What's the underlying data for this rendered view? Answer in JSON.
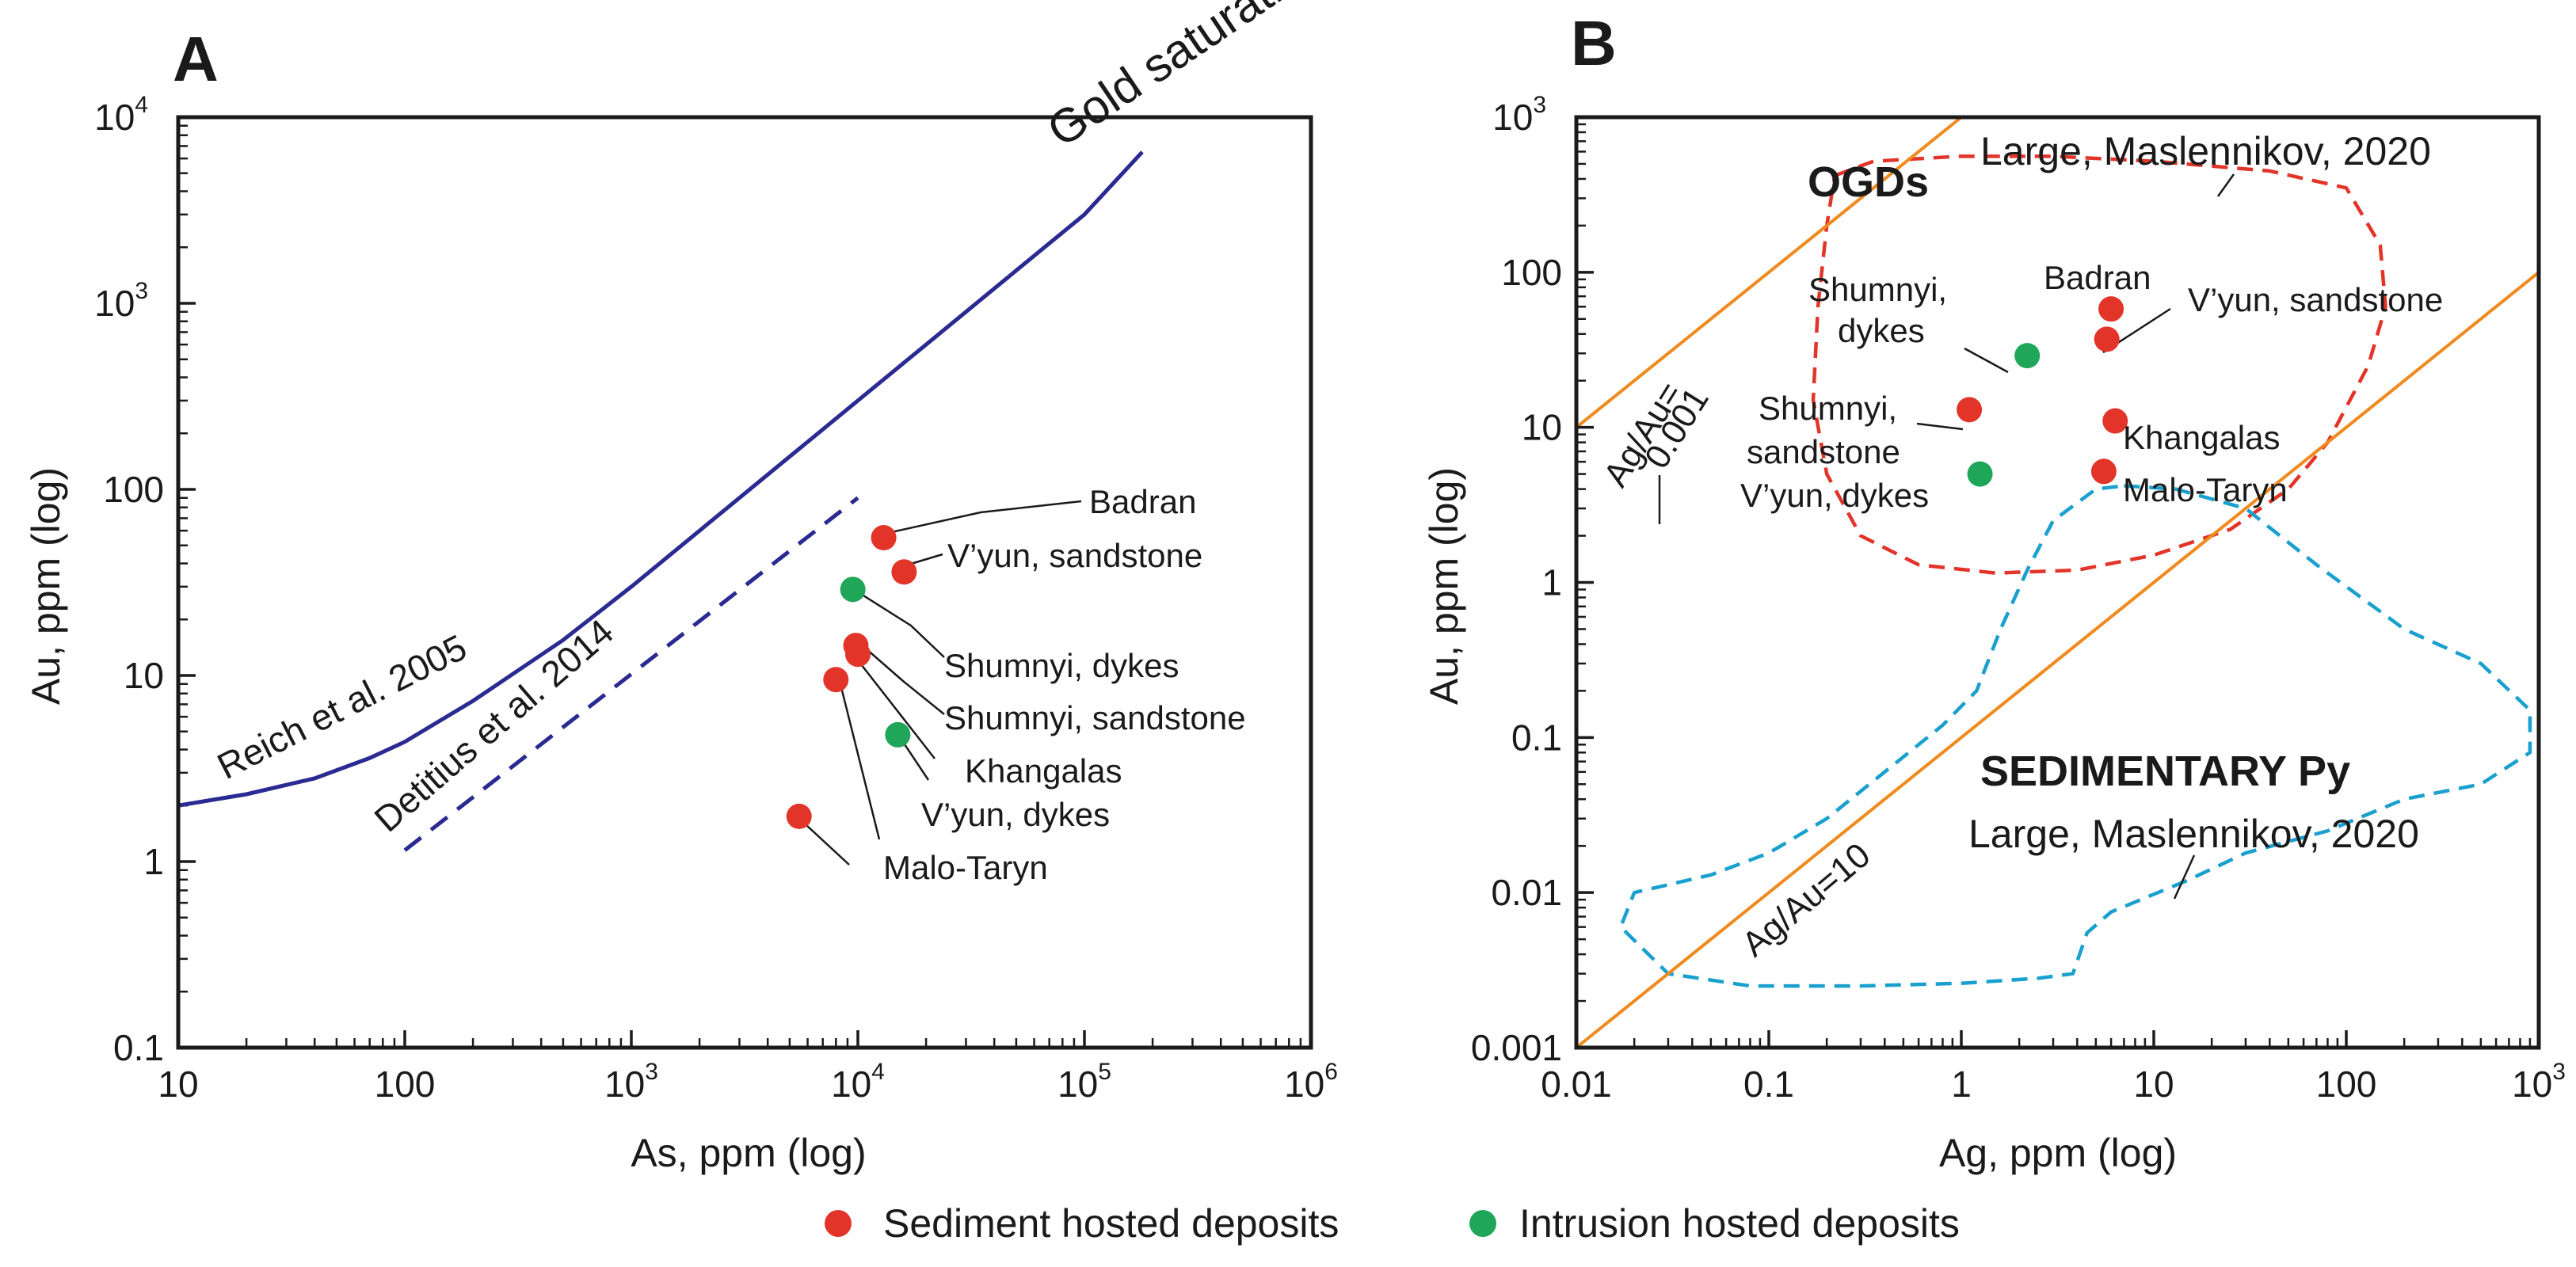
{
  "colors": {
    "sediment": "#e3342a",
    "intrusion": "#1fa659",
    "curve": "#2a2a92",
    "orange": "#f08a1e",
    "ogd": "#e3342a",
    "sed": "#1aa0cf"
  },
  "legend": {
    "sediment_label": "Sediment hosted deposits",
    "intrusion_label": "Intrusion hosted deposits"
  },
  "chart_data": [
    {
      "panel": "A",
      "type": "scatter",
      "xlabel": "As, ppm (log)",
      "ylabel": "Au, ppm (log)",
      "xscale": "log",
      "yscale": "log",
      "xlim": [
        10,
        1000000
      ],
      "ylim": [
        0.1,
        10000
      ],
      "x_ticks": [
        {
          "v": 10,
          "label": "10"
        },
        {
          "v": 100,
          "label": "100"
        },
        {
          "v": 1000,
          "base": "10",
          "exp": "3"
        },
        {
          "v": 10000,
          "base": "10",
          "exp": "4"
        },
        {
          "v": 100000,
          "base": "10",
          "exp": "5"
        },
        {
          "v": 1000000,
          "base": "10",
          "exp": "6"
        }
      ],
      "y_ticks": [
        {
          "v": 0.1,
          "label": "0.1"
        },
        {
          "v": 1,
          "label": "1"
        },
        {
          "v": 10,
          "label": "10"
        },
        {
          "v": 100,
          "label": "100"
        },
        {
          "v": 1000,
          "base": "10",
          "exp": "3"
        },
        {
          "v": 10000,
          "base": "10",
          "exp": "4"
        }
      ],
      "points": [
        {
          "name": "Badran",
          "x": 13000,
          "y": 55,
          "group": "sediment"
        },
        {
          "name": "V’yun, sandstone",
          "x": 16000,
          "y": 36,
          "group": "sediment"
        },
        {
          "name": "Shumnyi, dykes",
          "x": 9500,
          "y": 29,
          "group": "intrusion"
        },
        {
          "name": "Shumnyi, sandstone",
          "x": 9800,
          "y": 14.5,
          "group": "sediment"
        },
        {
          "name": "Khangalas",
          "x": 10000,
          "y": 13,
          "group": "sediment"
        },
        {
          "name": "V’yun, dykes",
          "x": 15000,
          "y": 4.8,
          "group": "intrusion"
        },
        {
          "name": "Malo-Taryn",
          "x": 8000,
          "y": 9.5,
          "group": "sediment"
        },
        {
          "name": "Malo-Taryn",
          "x": 5500,
          "y": 1.75,
          "group": "sediment"
        }
      ],
      "lines": [
        {
          "label": "Reich et al. 2005",
          "style": "solid",
          "x": [
            10,
            20,
            40,
            70,
            100,
            200,
            500,
            1000,
            2000,
            5000,
            10000,
            20000,
            50000,
            100000,
            180000
          ],
          "y": [
            2,
            2.3,
            2.8,
            3.6,
            4.4,
            7.3,
            15.5,
            30,
            60,
            150,
            300,
            600,
            1500,
            3000,
            6500
          ]
        },
        {
          "label": "Detitius et al. 2014",
          "style": "dashed",
          "x": [
            100,
            10000
          ],
          "y": [
            1.15,
            90
          ]
        }
      ],
      "curve_label": "Gold saturation"
    },
    {
      "panel": "B",
      "type": "scatter",
      "xlabel": "Ag, ppm (log)",
      "ylabel": "Au, ppm (log)",
      "xscale": "log",
      "yscale": "log",
      "xlim": [
        0.01,
        1000
      ],
      "ylim": [
        0.001,
        1000
      ],
      "x_ticks": [
        {
          "v": 0.01,
          "label": "0.01"
        },
        {
          "v": 0.1,
          "label": "0.1"
        },
        {
          "v": 1,
          "label": "1"
        },
        {
          "v": 10,
          "label": "10"
        },
        {
          "v": 100,
          "label": "100"
        },
        {
          "v": 1000,
          "base": "10",
          "exp": "3"
        }
      ],
      "y_ticks": [
        {
          "v": 0.001,
          "label": "0.001"
        },
        {
          "v": 0.01,
          "label": "0.01"
        },
        {
          "v": 0.1,
          "label": "0.1"
        },
        {
          "v": 1,
          "label": "1"
        },
        {
          "v": 10,
          "label": "10"
        },
        {
          "v": 100,
          "label": "100"
        },
        {
          "v": 1000,
          "base": "10",
          "exp": "3"
        }
      ],
      "points": [
        {
          "name": "Badran",
          "x": 6,
          "y": 58,
          "group": "sediment"
        },
        {
          "name": "V’yun, sandstone",
          "x": 5.7,
          "y": 37,
          "group": "sediment"
        },
        {
          "name": "Shumnyi, dykes",
          "x": 2.2,
          "y": 29,
          "group": "intrusion"
        },
        {
          "name": "Shumnyi, sandstone",
          "x": 1.1,
          "y": 13,
          "group": "sediment"
        },
        {
          "name": "Khangalas",
          "x": 6.3,
          "y": 11,
          "group": "sediment"
        },
        {
          "name": "V’yun, dykes",
          "x": 1.25,
          "y": 5,
          "group": "intrusion"
        },
        {
          "name": "Malo-Taryn",
          "x": 5.5,
          "y": 5.2,
          "group": "sediment"
        }
      ],
      "ratio_lines": [
        {
          "label_a": "Ag/Au=",
          "label_b": "0.001",
          "ratio": 0.001
        },
        {
          "label": "Ag/Au=10",
          "ratio": 10
        }
      ],
      "fields": [
        {
          "label": "OGDs",
          "source": "Large, Maslennikov, 2020",
          "outline": [
            [
              0.22,
              420
            ],
            [
              0.35,
              520
            ],
            [
              1,
              560
            ],
            [
              3,
              560
            ],
            [
              10,
              520
            ],
            [
              40,
              450
            ],
            [
              100,
              350
            ],
            [
              150,
              150
            ],
            [
              160,
              60
            ],
            [
              130,
              25
            ],
            [
              80,
              8
            ],
            [
              50,
              4
            ],
            [
              25,
              2.2
            ],
            [
              10,
              1.5
            ],
            [
              4,
              1.2
            ],
            [
              1.5,
              1.15
            ],
            [
              0.6,
              1.3
            ],
            [
              0.3,
              2
            ],
            [
              0.2,
              5
            ],
            [
              0.17,
              15
            ],
            [
              0.18,
              60
            ],
            [
              0.2,
              200
            ]
          ]
        },
        {
          "label": "SEDIMENTARY Py",
          "source": "Large, Maslennikov, 2020",
          "outline": [
            [
              7,
              4.2
            ],
            [
              13,
              4
            ],
            [
              30,
              3
            ],
            [
              70,
              1.3
            ],
            [
              200,
              0.5
            ],
            [
              500,
              0.3
            ],
            [
              900,
              0.15
            ],
            [
              900,
              0.08
            ],
            [
              500,
              0.05
            ],
            [
              200,
              0.04
            ],
            [
              80,
              0.025
            ],
            [
              30,
              0.018
            ],
            [
              15,
              0.012
            ],
            [
              6,
              0.0075
            ],
            [
              4.5,
              0.0055
            ],
            [
              3.8,
              0.003
            ],
            [
              2.5,
              0.0028
            ],
            [
              1,
              0.0026
            ],
            [
              0.3,
              0.0025
            ],
            [
              0.08,
              0.0025
            ],
            [
              0.03,
              0.003
            ],
            [
              0.017,
              0.006
            ],
            [
              0.02,
              0.01
            ],
            [
              0.05,
              0.013
            ],
            [
              0.1,
              0.018
            ],
            [
              0.2,
              0.03
            ],
            [
              0.4,
              0.06
            ],
            [
              0.8,
              0.12
            ],
            [
              1.2,
              0.2
            ],
            [
              1.6,
              0.5
            ],
            [
              2.2,
              1.2
            ],
            [
              3,
              2.5
            ],
            [
              5,
              4
            ]
          ]
        }
      ]
    }
  ]
}
